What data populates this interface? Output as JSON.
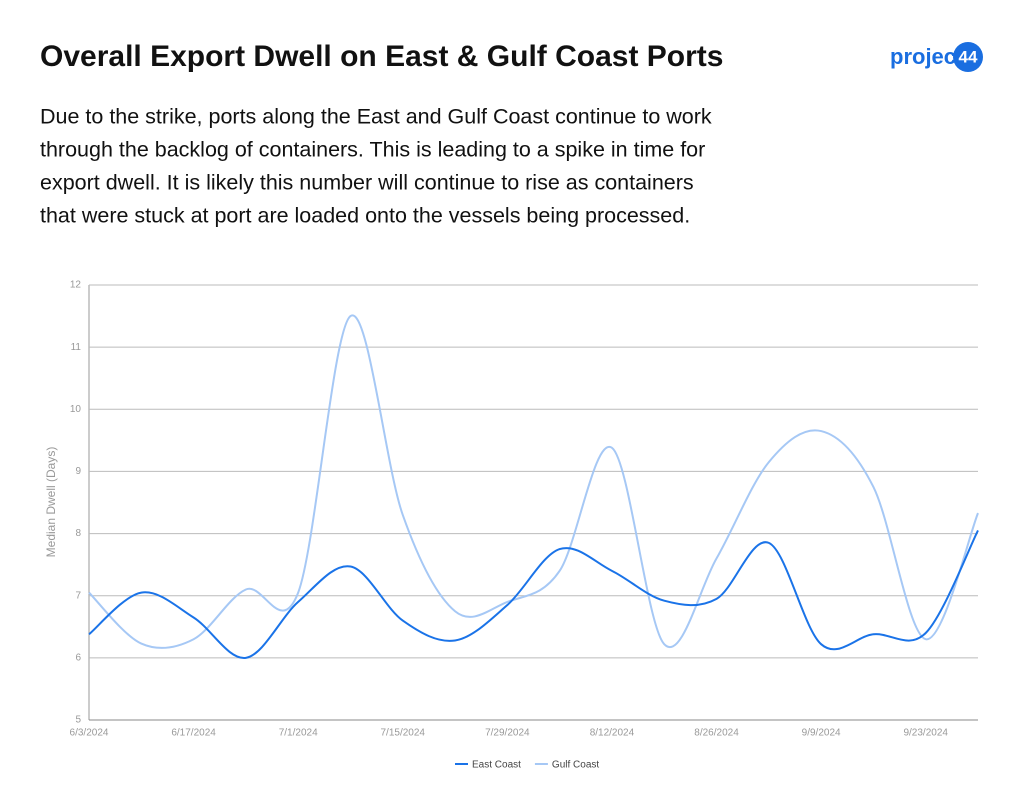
{
  "logo": {
    "text": "project",
    "number": "44"
  },
  "chart_data": {
    "type": "line",
    "title": "Overall Export Dwell on East & Gulf Coast Ports",
    "description": [
      "Due to the strike, ports along the East and Gulf Coast continue to work",
      "through the backlog of containers. This is leading to a spike in time for",
      "export dwell. It is likely this number will continue to rise as containers",
      "that were stuck at port are loaded onto the vessels being processed."
    ],
    "y_label": "Median Dwell (Days)",
    "categories": [
      "6/3/2024",
      null,
      "6/17/2024",
      null,
      "7/1/2024",
      null,
      "7/15/2024",
      null,
      "7/29/2024",
      null,
      "8/12/2024",
      null,
      "8/26/2024",
      null,
      "9/9/2024",
      null,
      "9/23/2024",
      null
    ],
    "series": [
      {
        "name": "East Coast",
        "color": "#1a73e8",
        "values": [
          6.38,
          7.05,
          6.65,
          6.0,
          6.9,
          7.47,
          6.6,
          6.28,
          6.85,
          7.75,
          7.4,
          6.92,
          6.95,
          7.85,
          6.22,
          6.38,
          6.4,
          8.05
        ]
      },
      {
        "name": "Gulf Coast",
        "color": "#a6c8f5",
        "values": [
          7.05,
          6.23,
          6.3,
          7.1,
          7.05,
          11.5,
          8.3,
          6.75,
          6.9,
          7.4,
          9.38,
          6.22,
          7.6,
          9.15,
          9.65,
          8.75,
          6.3,
          8.33
        ]
      }
    ],
    "ylim": [
      5,
      12
    ],
    "yticks": [
      5,
      6,
      7,
      8,
      9,
      10,
      11,
      12
    ],
    "grid": true,
    "legend": "bottom"
  }
}
